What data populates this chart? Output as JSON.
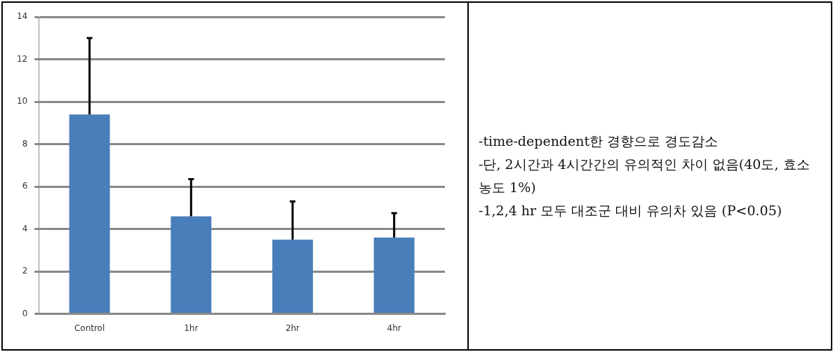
{
  "chart_data": {
    "type": "bar",
    "categories": [
      "Control",
      "1hr",
      "2hr",
      "4hr"
    ],
    "values": [
      9.4,
      4.6,
      3.5,
      3.6
    ],
    "color": "#4a7ebb",
    "errors": [
      [
        9.4,
        13.0
      ],
      [
        4.6,
        6.35
      ],
      [
        3.5,
        5.3
      ],
      [
        3.6,
        4.75
      ]
    ],
    "ylim": [
      0,
      14
    ],
    "yticks": [
      0,
      2,
      4,
      6,
      8,
      10,
      12,
      14
    ],
    "grid": "y",
    "legend": false,
    "annotations": [
      "-time-dependent한 경향으로 경도감소",
      "-단, 2시간과 4시간간의 유의적인 차이 없음(40도, 효소농도 1%)",
      "-1,2,4 hr 모두 대조군 대비 유의차 있음 (P<0.05)"
    ]
  }
}
